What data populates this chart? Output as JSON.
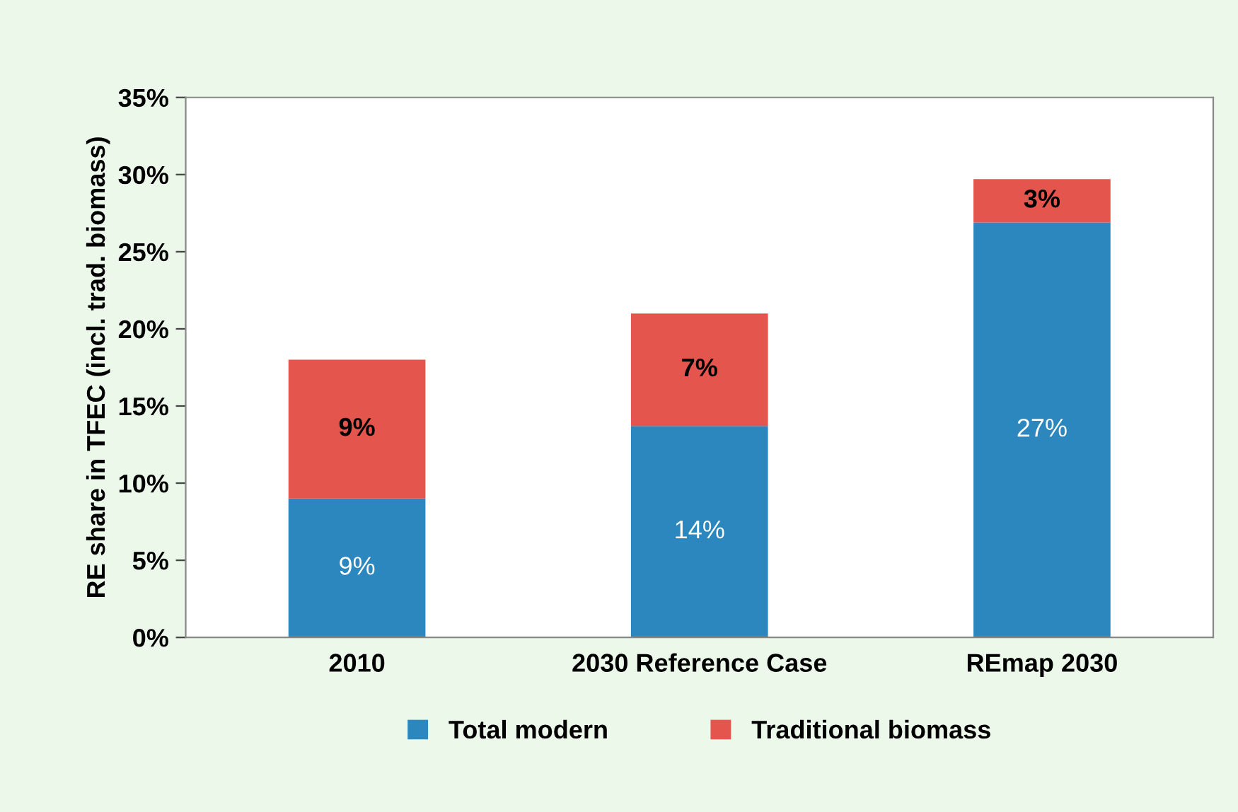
{
  "chart_data": {
    "type": "bar",
    "stacked": true,
    "ylabel": "RE share in TFEC (incl. trad. biomass)",
    "categories": [
      "2010",
      "2030 Reference Case",
      "REmap 2030"
    ],
    "series": [
      {
        "name": "Total modern",
        "color": "#2b87bd",
        "values": [
          9.0,
          13.7,
          26.9
        ],
        "value_labels": [
          "9%",
          "14%",
          "27%"
        ]
      },
      {
        "name": "Traditional biomass",
        "color": "#e4554d",
        "values": [
          9.0,
          7.3,
          2.8
        ],
        "value_labels": [
          "9%",
          "7%",
          "3%"
        ]
      }
    ],
    "ylim": [
      0,
      35
    ],
    "yticks": [
      {
        "value": 0,
        "label": "0%"
      },
      {
        "value": 5,
        "label": "5%"
      },
      {
        "value": 10,
        "label": "10%"
      },
      {
        "value": 15,
        "label": "15%"
      },
      {
        "value": 20,
        "label": "20%"
      },
      {
        "value": 25,
        "label": "25%"
      },
      {
        "value": 30,
        "label": "30%"
      },
      {
        "value": 35,
        "label": "35%"
      }
    ],
    "grid": false,
    "legend": "bottom"
  }
}
